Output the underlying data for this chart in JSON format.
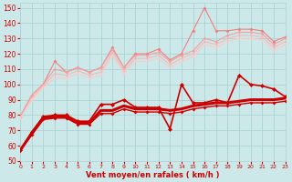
{
  "x": [
    0,
    1,
    2,
    3,
    4,
    5,
    6,
    7,
    8,
    9,
    10,
    11,
    12,
    13,
    14,
    15,
    16,
    17,
    18,
    19,
    20,
    21,
    22,
    23
  ],
  "series": [
    {
      "name": "max_rafales",
      "color": "#f08080",
      "linewidth": 0.8,
      "markersize": 2.0,
      "y": [
        79,
        93,
        100,
        115,
        108,
        111,
        108,
        111,
        124,
        111,
        120,
        120,
        123,
        116,
        120,
        135,
        150,
        135,
        135,
        136,
        136,
        135,
        128,
        131
      ]
    },
    {
      "name": "moy_rafales_upper",
      "color": "#f4a0a0",
      "linewidth": 0.8,
      "markersize": 1.8,
      "y": [
        79,
        93,
        100,
        110,
        108,
        111,
        108,
        111,
        123,
        111,
        119,
        119,
        121,
        115,
        119,
        122,
        130,
        128,
        132,
        134,
        134,
        133,
        126,
        130
      ]
    },
    {
      "name": "moy_rafales",
      "color": "#f8b8b8",
      "linewidth": 0.8,
      "markersize": 1.5,
      "y": [
        78,
        91,
        99,
        107,
        106,
        109,
        106,
        108,
        121,
        109,
        117,
        117,
        119,
        113,
        117,
        120,
        128,
        126,
        130,
        132,
        132,
        131,
        124,
        128
      ]
    },
    {
      "name": "moy_rafales_lower",
      "color": "#fccaca",
      "linewidth": 0.8,
      "markersize": 1.5,
      "y": [
        78,
        90,
        98,
        104,
        104,
        107,
        104,
        106,
        119,
        107,
        115,
        115,
        117,
        111,
        115,
        118,
        126,
        124,
        128,
        130,
        130,
        129,
        122,
        126
      ]
    },
    {
      "name": "vent_max",
      "color": "#cc0000",
      "linewidth": 1.2,
      "markersize": 2.5,
      "y": [
        57,
        69,
        79,
        80,
        80,
        76,
        76,
        87,
        87,
        90,
        85,
        85,
        85,
        71,
        100,
        88,
        88,
        90,
        88,
        106,
        100,
        99,
        97,
        92
      ]
    },
    {
      "name": "vent_moy",
      "color": "#cc0000",
      "linewidth": 2.2,
      "markersize": 0,
      "y": [
        57,
        68,
        78,
        79,
        79,
        75,
        75,
        83,
        83,
        86,
        84,
        84,
        84,
        83,
        84,
        86,
        87,
        88,
        88,
        89,
        90,
        90,
        90,
        91
      ]
    },
    {
      "name": "vent_min",
      "color": "#cc0000",
      "linewidth": 1.0,
      "markersize": 2.0,
      "y": [
        57,
        67,
        77,
        78,
        78,
        74,
        74,
        81,
        81,
        84,
        82,
        82,
        82,
        81,
        82,
        84,
        85,
        86,
        86,
        87,
        88,
        88,
        88,
        89
      ]
    }
  ],
  "xlim": [
    0,
    23
  ],
  "ylim": [
    50,
    153
  ],
  "yticks": [
    50,
    60,
    70,
    80,
    90,
    100,
    110,
    120,
    130,
    140,
    150
  ],
  "xticks": [
    0,
    1,
    2,
    3,
    4,
    5,
    6,
    7,
    8,
    9,
    10,
    11,
    12,
    13,
    14,
    15,
    16,
    17,
    18,
    19,
    20,
    21,
    22,
    23
  ],
  "xlabel": "Vent moyen/en rafales ( km/h )",
  "background_color": "#cce8e8",
  "grid_color": "#aad4d4",
  "tick_color": "#cc0000",
  "label_color": "#cc0000"
}
